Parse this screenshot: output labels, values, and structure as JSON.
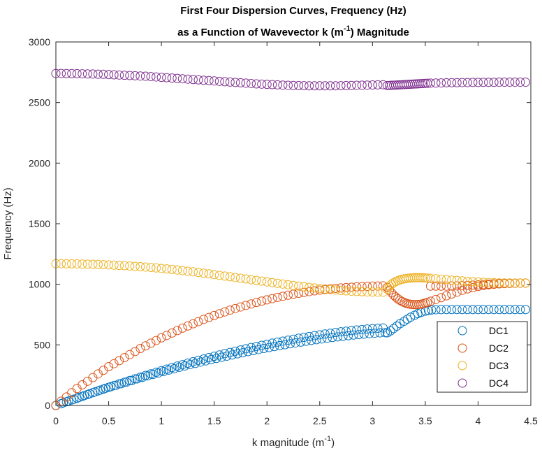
{
  "chart_data": {
    "type": "scatter",
    "title": [
      "First Four Dispersion Curves, Frequency (Hz)",
      "as a Function of Wavevector k (m",
      "-1",
      ") Magnitude"
    ],
    "xlabel": [
      "k magnitude (m",
      "-1",
      ")"
    ],
    "ylabel": "Frequency (Hz)",
    "xlim": [
      0,
      4.5
    ],
    "ylim": [
      0,
      3000
    ],
    "xticks": [
      0,
      0.5,
      1,
      1.5,
      2,
      2.5,
      3,
      3.5,
      4,
      4.5
    ],
    "xtick_labels": [
      "0",
      "0.5",
      "1",
      "1.5",
      "2",
      "2.5",
      "3",
      "3.5",
      "4",
      "4.5"
    ],
    "yticks": [
      0,
      500,
      1000,
      1500,
      2000,
      2500,
      3000
    ],
    "ytick_labels": [
      "0",
      "500",
      "1000",
      "1500",
      "2000",
      "2500",
      "3000"
    ],
    "grid": false,
    "legend_position": "bottom-right",
    "marker": "open-circle",
    "series": [
      {
        "name": "DC1",
        "color": "#0072BD",
        "x": [
          0,
          0.05,
          0.1,
          0.15,
          0.2,
          0.25,
          0.3,
          0.35,
          0.4,
          0.45,
          0.5,
          0.55,
          0.6,
          0.65,
          0.7,
          0.75,
          0.8,
          0.85,
          0.9,
          0.95,
          1.0,
          1.05,
          1.1,
          1.15,
          1.2,
          1.25,
          1.3,
          1.35,
          1.4,
          1.45,
          1.5,
          1.55,
          1.6,
          1.65,
          1.7,
          1.75,
          1.8,
          1.85,
          1.9,
          1.95,
          2.0,
          2.05,
          2.1,
          2.15,
          2.2,
          2.25,
          2.3,
          2.35,
          2.4,
          2.45,
          2.5,
          2.55,
          2.6,
          2.65,
          2.7,
          2.75,
          2.8,
          2.85,
          2.9,
          2.95,
          3.0,
          3.05,
          3.1,
          3.14,
          3.17,
          3.2,
          3.23,
          3.26,
          3.3,
          3.33,
          3.36,
          3.4,
          3.43,
          3.46,
          3.5,
          3.53,
          3.56,
          3.6,
          3.65,
          3.7,
          3.75,
          3.8,
          3.85,
          3.9,
          3.95,
          4.0,
          4.05,
          4.1,
          4.15,
          4.2,
          4.25,
          4.3,
          4.35,
          4.4,
          4.45,
          0.07,
          0.12,
          0.17,
          0.22,
          0.27,
          0.32,
          0.37,
          0.42,
          0.47,
          0.52,
          0.57,
          0.62,
          0.67,
          0.72,
          0.77,
          0.82,
          0.87,
          0.92,
          0.97,
          1.02,
          1.07,
          1.12,
          1.17,
          1.22,
          1.27,
          1.32,
          1.37,
          1.42,
          1.47,
          1.52,
          1.57,
          1.62,
          1.67,
          1.72,
          1.77,
          1.82,
          1.87,
          1.92,
          1.97,
          2.02,
          2.07,
          2.12,
          2.17,
          2.22,
          2.27,
          2.32,
          2.37,
          2.42,
          2.47,
          2.52,
          2.57,
          2.62,
          2.67,
          2.72,
          2.77,
          2.82,
          2.87,
          2.92,
          2.97,
          3.02,
          3.07,
          3.12
        ],
        "y": [
          0,
          15,
          30,
          45,
          60,
          75,
          90,
          105,
          120,
          135,
          150,
          164,
          178,
          192,
          206,
          220,
          234,
          248,
          261,
          274,
          287,
          300,
          313,
          325,
          337,
          349,
          361,
          373,
          384,
          395,
          406,
          417,
          428,
          438,
          448,
          458,
          468,
          478,
          487,
          496,
          505,
          514,
          523,
          531,
          539,
          547,
          555,
          562,
          569,
          576,
          583,
          590,
          596,
          602,
          608,
          613,
          618,
          623,
          627,
          631,
          634,
          637,
          640,
          600,
          615,
          635,
          655,
          675,
          695,
          712,
          728,
          745,
          758,
          768,
          778,
          784,
          788,
          790,
          791,
          792,
          792,
          792,
          792,
          792,
          792,
          792,
          792,
          792,
          792,
          792,
          792,
          792,
          792,
          792,
          792,
          22,
          37,
          52,
          67,
          82,
          97,
          112,
          127,
          142,
          155,
          167,
          180,
          193,
          206,
          219,
          232,
          244,
          256,
          268,
          280,
          292,
          303,
          315,
          326,
          337,
          347,
          358,
          368,
          378,
          388,
          398,
          407,
          417,
          426,
          435,
          444,
          453,
          461,
          470,
          478,
          486,
          494,
          501,
          509,
          516,
          523,
          530,
          537,
          543,
          549,
          555,
          561,
          566,
          571,
          576,
          581,
          585,
          589,
          593,
          596,
          599,
          601
        ]
      },
      {
        "name": "DC2",
        "color": "#D95319",
        "x": [
          0,
          0.05,
          0.1,
          0.15,
          0.2,
          0.25,
          0.3,
          0.35,
          0.4,
          0.45,
          0.5,
          0.55,
          0.6,
          0.65,
          0.7,
          0.75,
          0.8,
          0.85,
          0.9,
          0.95,
          1.0,
          1.05,
          1.1,
          1.15,
          1.2,
          1.25,
          1.3,
          1.35,
          1.4,
          1.45,
          1.5,
          1.55,
          1.6,
          1.65,
          1.7,
          1.75,
          1.8,
          1.85,
          1.9,
          1.95,
          2.0,
          2.05,
          2.1,
          2.15,
          2.2,
          2.25,
          2.3,
          2.35,
          2.4,
          2.45,
          2.5,
          2.55,
          2.6,
          2.65,
          2.7,
          2.75,
          2.8,
          2.85,
          2.9,
          2.95,
          3.0,
          3.05,
          3.1,
          3.14,
          3.16,
          3.18,
          3.2,
          3.22,
          3.24,
          3.26,
          3.28,
          3.3,
          3.32,
          3.34,
          3.36,
          3.38,
          3.4,
          3.42,
          3.44,
          3.46,
          3.48,
          3.5,
          3.52,
          3.55,
          3.6,
          3.65,
          3.7,
          3.75,
          3.8,
          3.85,
          3.9,
          3.95,
          4.0,
          4.05,
          4.1,
          4.15,
          4.2,
          4.25,
          4.3,
          4.35,
          4.4,
          4.45,
          3.55,
          3.6,
          3.65,
          3.7,
          3.75,
          3.8,
          3.85,
          3.9,
          3.95,
          4.0,
          4.05,
          4.1,
          4.15,
          4.2,
          4.25,
          4.3,
          4.35,
          4.4,
          4.45
        ],
        "y": [
          0,
          35,
          70,
          105,
          140,
          170,
          200,
          230,
          260,
          290,
          320,
          345,
          370,
          395,
          420,
          445,
          470,
          492,
          514,
          536,
          558,
          578,
          598,
          618,
          638,
          656,
          674,
          692,
          710,
          726,
          742,
          757,
          772,
          787,
          800,
          813,
          826,
          838,
          850,
          861,
          872,
          882,
          892,
          901,
          910,
          918,
          926,
          933,
          940,
          946,
          952,
          957,
          962,
          966,
          970,
          973,
          976,
          979,
          981,
          983,
          985,
          986,
          987,
          975,
          950,
          930,
          910,
          895,
          880,
          868,
          858,
          850,
          843,
          838,
          835,
          833,
          832,
          833,
          834,
          836,
          840,
          845,
          850,
          860,
          875,
          890,
          905,
          920,
          935,
          950,
          962,
          972,
          982,
          990,
          996,
          1000,
          1004,
          1006,
          1008,
          1009,
          1010,
          1010,
          985,
          985,
          985,
          985,
          986,
          987,
          989,
          991,
          993,
          995,
          998,
          1001,
          1003,
          1005,
          1007,
          1008,
          1009,
          1010,
          1010
        ]
      },
      {
        "name": "DC3",
        "color": "#EDB120",
        "x": [
          0,
          0.05,
          0.1,
          0.15,
          0.2,
          0.25,
          0.3,
          0.35,
          0.4,
          0.45,
          0.5,
          0.55,
          0.6,
          0.65,
          0.7,
          0.75,
          0.8,
          0.85,
          0.9,
          0.95,
          1.0,
          1.05,
          1.1,
          1.15,
          1.2,
          1.25,
          1.3,
          1.35,
          1.4,
          1.45,
          1.5,
          1.55,
          1.6,
          1.65,
          1.7,
          1.75,
          1.8,
          1.85,
          1.9,
          1.95,
          2.0,
          2.05,
          2.1,
          2.15,
          2.2,
          2.25,
          2.3,
          2.35,
          2.4,
          2.45,
          2.5,
          2.55,
          2.6,
          2.65,
          2.7,
          2.75,
          2.8,
          2.85,
          2.9,
          2.95,
          3.0,
          3.05,
          3.1,
          3.14,
          3.16,
          3.18,
          3.2,
          3.22,
          3.24,
          3.26,
          3.28,
          3.3,
          3.32,
          3.34,
          3.36,
          3.38,
          3.4,
          3.42,
          3.44,
          3.46,
          3.48,
          3.5,
          3.52,
          3.55,
          3.6,
          3.65,
          3.7,
          3.75,
          3.8,
          3.85,
          3.9,
          3.95,
          4.0,
          4.05,
          4.1,
          4.15,
          4.2,
          4.25,
          4.3,
          4.35,
          4.4,
          4.45
        ],
        "y": [
          1170,
          1170,
          1169,
          1169,
          1168,
          1167,
          1166,
          1165,
          1164,
          1162,
          1160,
          1158,
          1156,
          1154,
          1151,
          1148,
          1145,
          1142,
          1139,
          1135,
          1131,
          1127,
          1123,
          1118,
          1113,
          1108,
          1103,
          1098,
          1092,
          1086,
          1080,
          1074,
          1068,
          1062,
          1056,
          1050,
          1044,
          1038,
          1032,
          1026,
          1020,
          1014,
          1008,
          1002,
          996,
          990,
          985,
          980,
          975,
          970,
          965,
          961,
          957,
          953,
          949,
          946,
          943,
          941,
          939,
          937,
          936,
          935,
          935,
          960,
          985,
          1000,
          1012,
          1022,
          1030,
          1036,
          1041,
          1045,
          1048,
          1050,
          1052,
          1053,
          1054,
          1054,
          1054,
          1054,
          1053,
          1052,
          1051,
          1049,
          1046,
          1042,
          1039,
          1035,
          1032,
          1028,
          1025,
          1022,
          1019,
          1017,
          1015,
          1013,
          1012,
          1011,
          1011,
          1010,
          1010,
          1010
        ]
      },
      {
        "name": "DC4",
        "color": "#7E2F8E",
        "x": [
          0,
          0.05,
          0.1,
          0.15,
          0.2,
          0.25,
          0.3,
          0.35,
          0.4,
          0.45,
          0.5,
          0.55,
          0.6,
          0.65,
          0.7,
          0.75,
          0.8,
          0.85,
          0.9,
          0.95,
          1.0,
          1.05,
          1.1,
          1.15,
          1.2,
          1.25,
          1.3,
          1.35,
          1.4,
          1.45,
          1.5,
          1.55,
          1.6,
          1.65,
          1.7,
          1.75,
          1.8,
          1.85,
          1.9,
          1.95,
          2.0,
          2.05,
          2.1,
          2.15,
          2.2,
          2.25,
          2.3,
          2.35,
          2.4,
          2.45,
          2.5,
          2.55,
          2.6,
          2.65,
          2.7,
          2.75,
          2.8,
          2.85,
          2.9,
          2.95,
          3.0,
          3.05,
          3.1,
          3.14,
          3.16,
          3.18,
          3.2,
          3.22,
          3.24,
          3.26,
          3.28,
          3.3,
          3.32,
          3.34,
          3.36,
          3.38,
          3.4,
          3.42,
          3.44,
          3.46,
          3.48,
          3.5,
          3.52,
          3.55,
          3.6,
          3.65,
          3.7,
          3.75,
          3.8,
          3.85,
          3.9,
          3.95,
          4.0,
          4.05,
          4.1,
          4.15,
          4.2,
          4.25,
          4.3,
          4.35,
          4.4,
          4.45
        ],
        "y": [
          2740,
          2740,
          2739,
          2739,
          2738,
          2737,
          2736,
          2735,
          2734,
          2733,
          2731,
          2729,
          2727,
          2725,
          2723,
          2721,
          2719,
          2717,
          2714,
          2711,
          2708,
          2705,
          2702,
          2699,
          2696,
          2693,
          2690,
          2687,
          2684,
          2681,
          2678,
          2675,
          2672,
          2669,
          2666,
          2663,
          2660,
          2657,
          2654,
          2652,
          2650,
          2648,
          2646,
          2644,
          2642,
          2641,
          2640,
          2639,
          2638,
          2638,
          2638,
          2638,
          2638,
          2638,
          2639,
          2640,
          2641,
          2642,
          2643,
          2644,
          2645,
          2646,
          2647,
          2640,
          2641,
          2642,
          2643,
          2644,
          2645,
          2646,
          2647,
          2648,
          2649,
          2650,
          2651,
          2652,
          2653,
          2654,
          2655,
          2656,
          2657,
          2658,
          2659,
          2660,
          2661,
          2662,
          2663,
          2664,
          2664,
          2665,
          2665,
          2666,
          2666,
          2667,
          2667,
          2667,
          2668,
          2668,
          2668,
          2668,
          2668,
          2668
        ]
      }
    ]
  }
}
